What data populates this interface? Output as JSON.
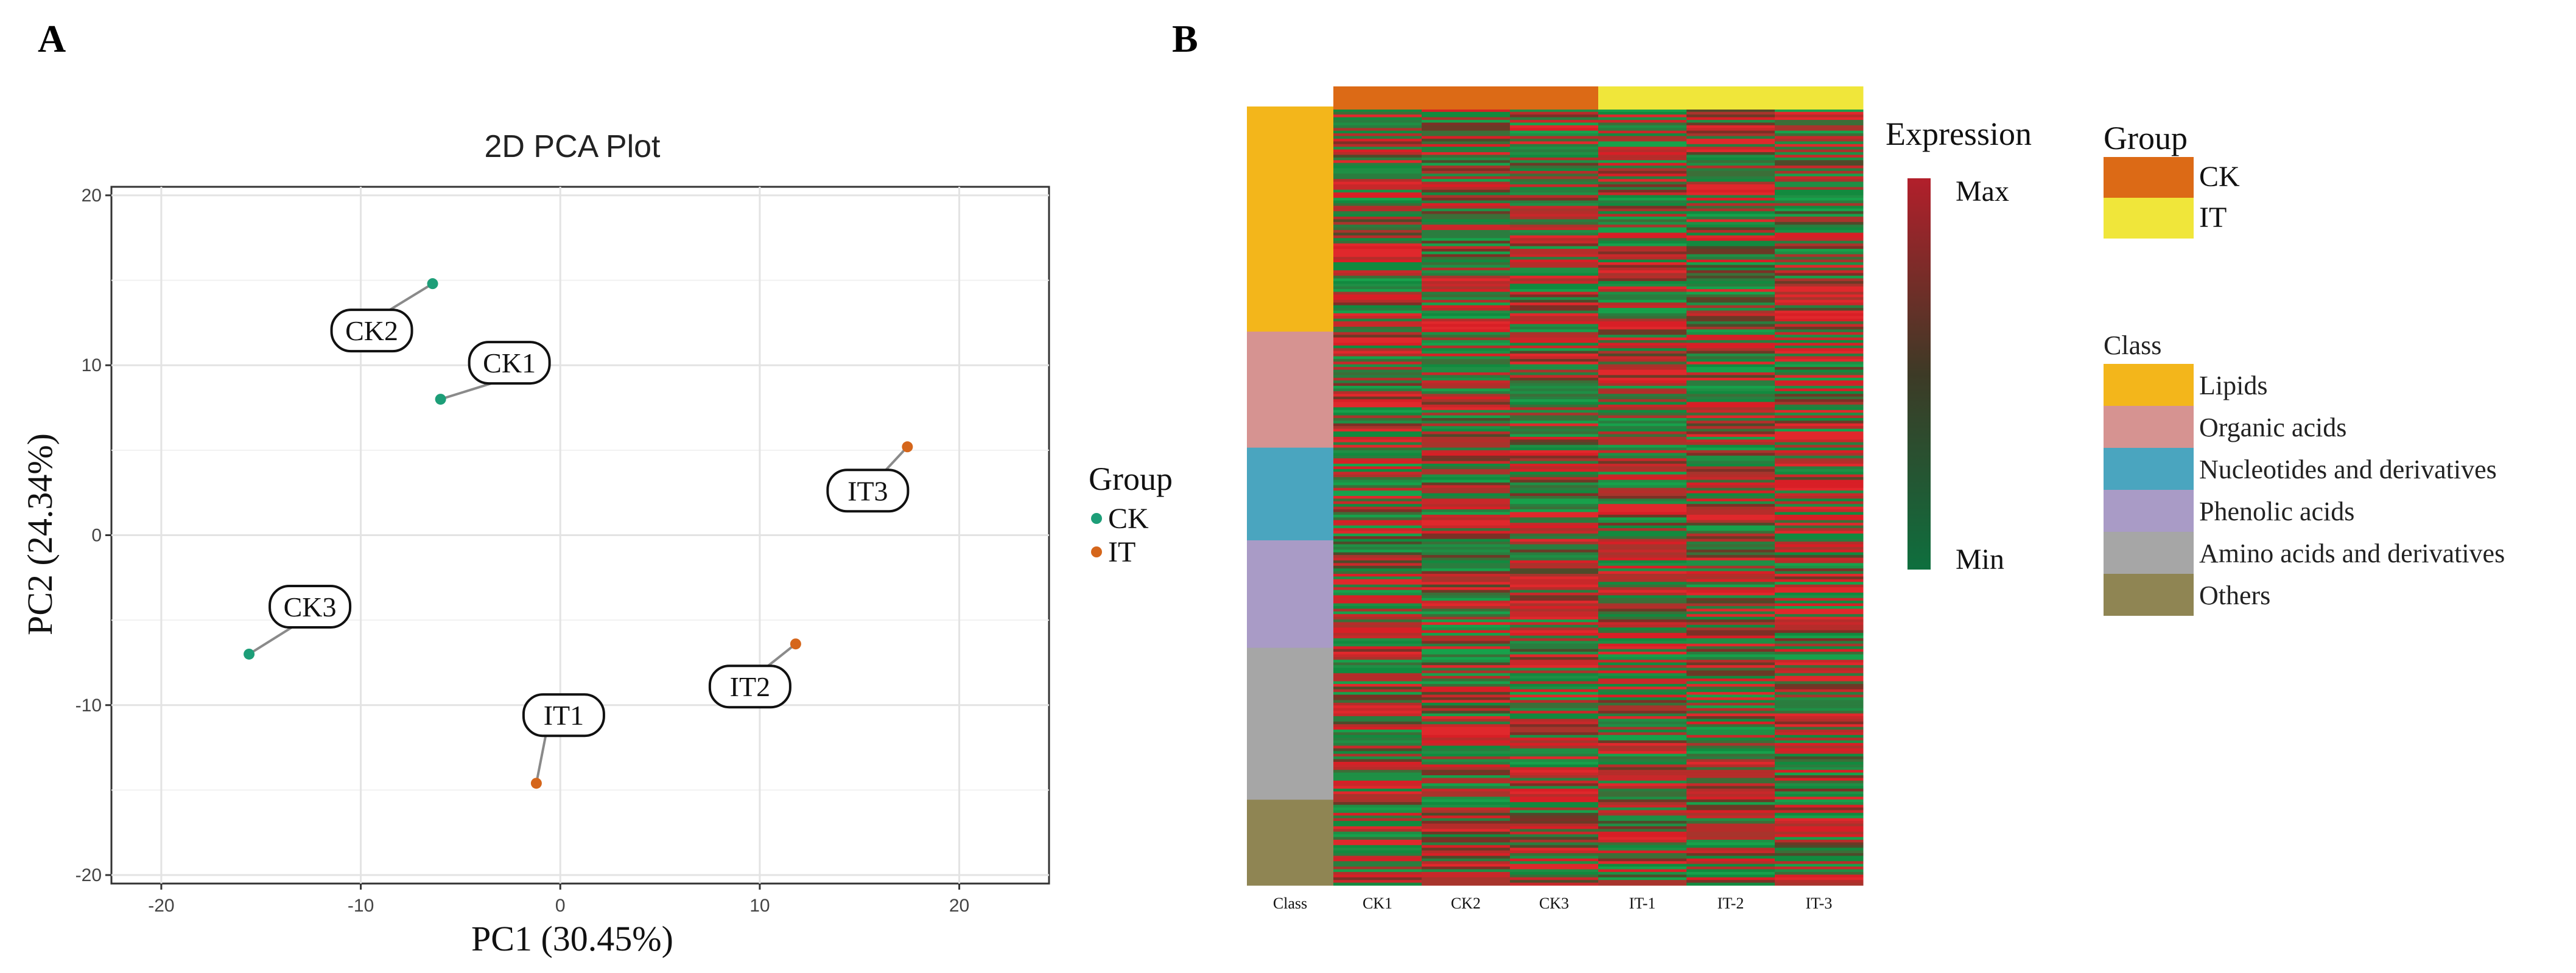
{
  "panel_a_letter": "A",
  "panel_b_letter": "B",
  "chart_data": [
    {
      "type": "scatter",
      "title": "2D PCA Plot",
      "xlabel": "PC1 (30.45%)",
      "ylabel": "PC2  (24.34%)",
      "xlim": [
        -22.5,
        24.5
      ],
      "ylim": [
        -20.5,
        20.5
      ],
      "xticks": [
        -20,
        -10,
        0,
        10,
        20
      ],
      "yticks": [
        -20,
        -10,
        0,
        10,
        20
      ],
      "legend_title": "Group",
      "series": [
        {
          "name": "CK",
          "color": "#1d9e78",
          "points": [
            {
              "label": "CK1",
              "x": -6.0,
              "y": 8.0
            },
            {
              "label": "CK2",
              "x": -6.4,
              "y": 14.8
            },
            {
              "label": "CK3",
              "x": -15.6,
              "y": -7.0
            }
          ]
        },
        {
          "name": "IT",
          "color": "#d5661b",
          "points": [
            {
              "label": "IT1",
              "x": -1.2,
              "y": -14.6
            },
            {
              "label": "IT2",
              "x": 11.8,
              "y": -6.4
            },
            {
              "label": "IT3",
              "x": 17.4,
              "y": 5.2
            }
          ]
        }
      ]
    },
    {
      "type": "heatmap",
      "columns": [
        "CK1",
        "CK2",
        "CK3",
        "IT-1",
        "IT-2",
        "IT-3"
      ],
      "class_column_label": "Class",
      "group_annotation": [
        "CK",
        "CK",
        "CK",
        "IT",
        "IT",
        "IT"
      ],
      "class_blocks": [
        {
          "name": "Lipids",
          "fraction": 0.289
        },
        {
          "name": "Organic acids",
          "fraction": 0.149
        },
        {
          "name": "Nucleotides and derivatives",
          "fraction": 0.119
        },
        {
          "name": "Phenolic acids",
          "fraction": 0.138
        },
        {
          "name": "Amino acids and derivatives",
          "fraction": 0.195
        },
        {
          "name": "Others",
          "fraction": 0.11
        }
      ],
      "expression_legend": {
        "title": "Expression",
        "max_label": "Max",
        "min_label": "Min"
      },
      "group_legend": {
        "title": "Group",
        "items": [
          {
            "name": "CK",
            "color": "#dc6a16"
          },
          {
            "name": "IT",
            "color": "#f0e63a"
          }
        ]
      },
      "class_legend": {
        "title": "Class",
        "items": [
          {
            "name": "Lipids",
            "color": "#f3b61b"
          },
          {
            "name": "Organic acids",
            "color": "#d69391"
          },
          {
            "name": "Nucleotides and derivatives",
            "color": "#4aa5bf"
          },
          {
            "name": "Phenolic acids",
            "color": "#a99bc6"
          },
          {
            "name": "Amino acids and derivatives",
            "color": "#a6a6a6"
          },
          {
            "name": "Others",
            "color": "#8f8553"
          }
        ]
      },
      "colors": {
        "high": "#d81f26",
        "low": "#179343",
        "mid": "#3b3b2a"
      }
    }
  ]
}
